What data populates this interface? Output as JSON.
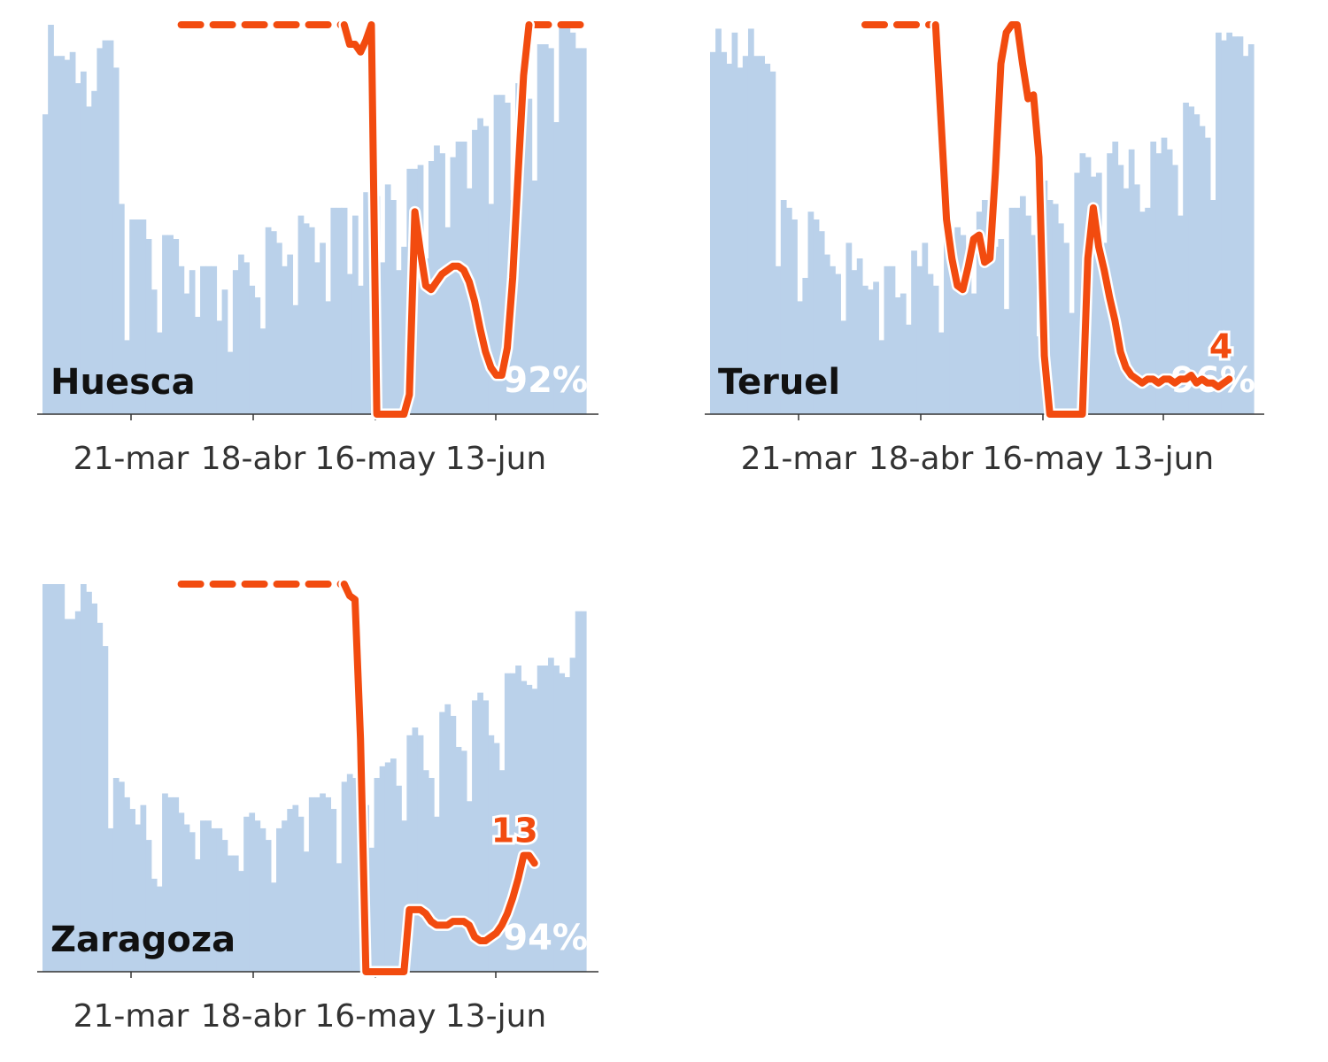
{
  "colors": {
    "bar": "#bad1ea",
    "line": "#f24b0f",
    "axis": "#333333",
    "text": "#111111"
  },
  "chart_data": [
    {
      "type": "bar",
      "panel": "Huesca",
      "region_label": "Huesca",
      "percent_label": "92%",
      "end_label": "",
      "x_tick_labels": [
        "21-mar",
        "18-abr",
        "16-may",
        "13-jun"
      ],
      "ylim": [
        0,
        100
      ],
      "bars": [
        77,
        100,
        92,
        92,
        91,
        93,
        85,
        88,
        79,
        83,
        94,
        96,
        96,
        89,
        54,
        19,
        50,
        50,
        50,
        45,
        32,
        21,
        46,
        46,
        45,
        38,
        31,
        37,
        25,
        38,
        38,
        38,
        24,
        32,
        16,
        37,
        41,
        39,
        33,
        30,
        22,
        48,
        47,
        44,
        38,
        41,
        28,
        51,
        49,
        48,
        39,
        44,
        29,
        53,
        53,
        53,
        36,
        51,
        33,
        57,
        58,
        56,
        39,
        59,
        55,
        37,
        43,
        63,
        63,
        64,
        40,
        65,
        69,
        67,
        48,
        66,
        70,
        70,
        58,
        73,
        76,
        74,
        54,
        82,
        82,
        80,
        55,
        85,
        82,
        81,
        60,
        95,
        95,
        94,
        75,
        100,
        100,
        98,
        94,
        94
      ],
      "line_solid": [
        [
          55,
          100
        ],
        [
          56,
          95
        ],
        [
          57,
          95
        ],
        [
          58,
          93
        ],
        [
          59,
          96
        ],
        [
          60,
          100
        ],
        [
          61,
          0
        ],
        [
          62,
          0
        ],
        [
          63,
          0
        ],
        [
          64,
          0
        ],
        [
          65,
          0
        ],
        [
          66,
          0
        ],
        [
          67,
          5
        ],
        [
          68,
          52
        ],
        [
          69,
          42
        ],
        [
          70,
          33
        ],
        [
          71,
          32
        ],
        [
          72,
          34
        ],
        [
          73,
          36
        ],
        [
          74,
          37
        ],
        [
          75,
          38
        ],
        [
          76,
          38
        ],
        [
          77,
          37
        ],
        [
          78,
          34
        ],
        [
          79,
          29
        ],
        [
          80,
          22
        ],
        [
          81,
          16
        ],
        [
          82,
          12
        ],
        [
          83,
          10
        ],
        [
          84,
          10
        ],
        [
          85,
          17
        ],
        [
          86,
          35
        ],
        [
          87,
          62
        ],
        [
          88,
          87
        ],
        [
          89,
          100
        ]
      ],
      "line_dashed": [
        [
          25,
          100
        ],
        [
          55,
          100
        ]
      ],
      "line_dashed_tail": [
        [
          89,
          100
        ],
        [
          99,
          100
        ]
      ]
    },
    {
      "type": "bar",
      "panel": "Teruel",
      "region_label": "Teruel",
      "percent_label": "96%",
      "end_label": "4",
      "x_tick_labels": [
        "21-mar",
        "18-abr",
        "16-may",
        "13-jun"
      ],
      "ylim": [
        0,
        100
      ],
      "bars": [
        93,
        99,
        93,
        90,
        98,
        89,
        92,
        99,
        92,
        92,
        90,
        88,
        38,
        55,
        53,
        50,
        29,
        35,
        52,
        50,
        47,
        41,
        38,
        36,
        24,
        44,
        37,
        40,
        33,
        32,
        34,
        19,
        38,
        38,
        30,
        31,
        23,
        42,
        38,
        44,
        36,
        33,
        21,
        47,
        43,
        48,
        46,
        37,
        31,
        52,
        55,
        51,
        43,
        45,
        27,
        53,
        53,
        56,
        51,
        46,
        20,
        60,
        55,
        54,
        49,
        44,
        26,
        62,
        67,
        66,
        61,
        62,
        44,
        67,
        70,
        64,
        58,
        68,
        59,
        52,
        53,
        70,
        67,
        71,
        68,
        64,
        51,
        80,
        79,
        77,
        74,
        71,
        55,
        98,
        96,
        98,
        97,
        97,
        92,
        95
      ],
      "line_solid": [
        [
          41,
          100
        ],
        [
          42,
          75
        ],
        [
          43,
          50
        ],
        [
          44,
          40
        ],
        [
          45,
          33
        ],
        [
          46,
          32
        ],
        [
          47,
          38
        ],
        [
          48,
          45
        ],
        [
          49,
          46
        ],
        [
          50,
          39
        ],
        [
          51,
          40
        ],
        [
          52,
          62
        ],
        [
          53,
          90
        ],
        [
          54,
          98
        ],
        [
          55,
          100
        ],
        [
          56,
          100
        ],
        [
          57,
          90
        ],
        [
          58,
          81
        ],
        [
          59,
          82
        ],
        [
          60,
          66
        ],
        [
          61,
          15
        ],
        [
          62,
          0
        ],
        [
          63,
          0
        ],
        [
          64,
          0
        ],
        [
          65,
          0
        ],
        [
          66,
          0
        ],
        [
          67,
          0
        ],
        [
          68,
          0
        ],
        [
          69,
          40
        ],
        [
          70,
          53
        ],
        [
          71,
          43
        ],
        [
          72,
          37
        ],
        [
          73,
          30
        ],
        [
          74,
          24
        ],
        [
          75,
          16
        ],
        [
          76,
          12
        ],
        [
          77,
          10
        ],
        [
          78,
          9
        ],
        [
          79,
          8
        ],
        [
          80,
          9
        ],
        [
          81,
          9
        ],
        [
          82,
          8
        ],
        [
          83,
          9
        ],
        [
          84,
          9
        ],
        [
          85,
          8
        ],
        [
          86,
          9
        ],
        [
          87,
          9
        ],
        [
          88,
          10
        ],
        [
          89,
          8
        ],
        [
          90,
          9
        ],
        [
          91,
          8
        ],
        [
          92,
          8
        ],
        [
          93,
          7
        ],
        [
          94,
          8
        ],
        [
          95,
          9
        ]
      ],
      "line_dashed": [
        [
          28,
          100
        ],
        [
          41,
          100
        ]
      ]
    },
    {
      "type": "bar",
      "panel": "Zaragoza",
      "region_label": "Zaragoza",
      "percent_label": "94%",
      "end_label": "13",
      "x_tick_labels": [
        "21-mar",
        "18-abr",
        "16-may",
        "13-jun"
      ],
      "ylim": [
        0,
        100
      ],
      "bars": [
        100,
        100,
        100,
        100,
        91,
        91,
        93,
        100,
        98,
        95,
        90,
        84,
        37,
        50,
        49,
        45,
        42,
        38,
        43,
        34,
        24,
        22,
        46,
        45,
        45,
        41,
        38,
        36,
        29,
        39,
        39,
        37,
        37,
        34,
        30,
        30,
        26,
        40,
        41,
        39,
        37,
        34,
        23,
        37,
        39,
        42,
        43,
        40,
        31,
        45,
        45,
        46,
        45,
        42,
        28,
        49,
        51,
        50,
        46,
        43,
        32,
        50,
        53,
        54,
        55,
        48,
        39,
        61,
        63,
        61,
        52,
        50,
        40,
        67,
        69,
        66,
        58,
        57,
        44,
        70,
        72,
        70,
        61,
        59,
        52,
        77,
        77,
        79,
        75,
        74,
        73,
        79,
        79,
        81,
        79,
        77,
        76,
        81,
        93,
        93
      ],
      "line_solid": [
        [
          55,
          100
        ],
        [
          56,
          97
        ],
        [
          57,
          96
        ],
        [
          58,
          60
        ],
        [
          59,
          0
        ],
        [
          60,
          0
        ],
        [
          61,
          0
        ],
        [
          62,
          0
        ],
        [
          63,
          0
        ],
        [
          64,
          0
        ],
        [
          65,
          0
        ],
        [
          66,
          0
        ],
        [
          67,
          16
        ],
        [
          68,
          16
        ],
        [
          69,
          16
        ],
        [
          70,
          15
        ],
        [
          71,
          13
        ],
        [
          72,
          12
        ],
        [
          73,
          12
        ],
        [
          74,
          12
        ],
        [
          75,
          13
        ],
        [
          76,
          13
        ],
        [
          77,
          13
        ],
        [
          78,
          12
        ],
        [
          79,
          9
        ],
        [
          80,
          8
        ],
        [
          81,
          8
        ],
        [
          82,
          9
        ],
        [
          83,
          10
        ],
        [
          84,
          12
        ],
        [
          85,
          15
        ],
        [
          86,
          19
        ],
        [
          87,
          24
        ],
        [
          88,
          30
        ],
        [
          89,
          30
        ],
        [
          90,
          28
        ]
      ],
      "line_dashed": [
        [
          25,
          100
        ],
        [
          55,
          100
        ]
      ]
    }
  ]
}
